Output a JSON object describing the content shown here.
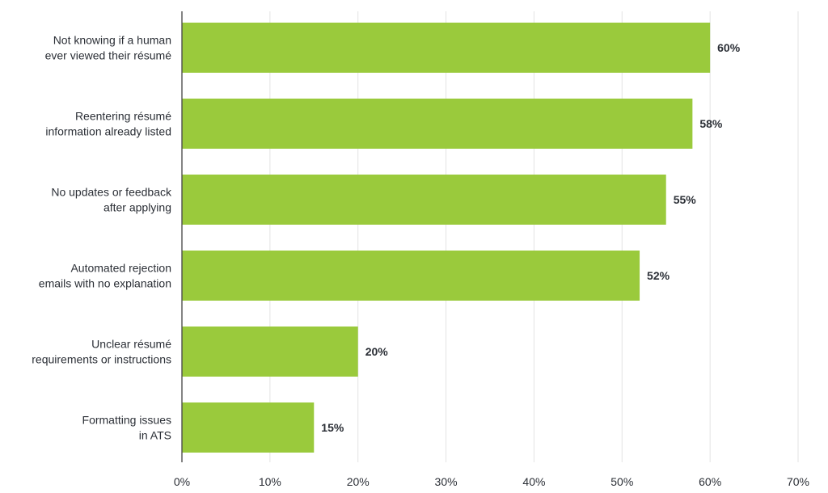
{
  "chart_data": {
    "type": "bar",
    "orientation": "horizontal",
    "categories": [
      [
        "Not knowing if a human",
        "ever viewed their résumé"
      ],
      [
        "Reentering résumé",
        "information already listed"
      ],
      [
        "No updates or feedback",
        "after applying"
      ],
      [
        "Automated rejection",
        "emails with no explanation"
      ],
      [
        "Unclear résumé",
        "requirements or instructions"
      ],
      [
        "Formatting issues",
        "in ATS"
      ]
    ],
    "values": [
      60,
      58,
      55,
      52,
      20,
      15
    ],
    "value_labels": [
      "60%",
      "58%",
      "55%",
      "52%",
      "20%",
      "15%"
    ],
    "xlim": [
      0,
      70
    ],
    "ticks": [
      0,
      10,
      20,
      30,
      40,
      50,
      60,
      70
    ],
    "tick_labels": [
      "0%",
      "10%",
      "20%",
      "30%",
      "40%",
      "50%",
      "60%",
      "70%"
    ],
    "grid": true,
    "title": "",
    "xlabel": "",
    "ylabel": "",
    "colors": {
      "bar": "#9aca3c",
      "grid": "#e3e3e3",
      "axis": "#333333",
      "text": "#2b2f36"
    }
  }
}
